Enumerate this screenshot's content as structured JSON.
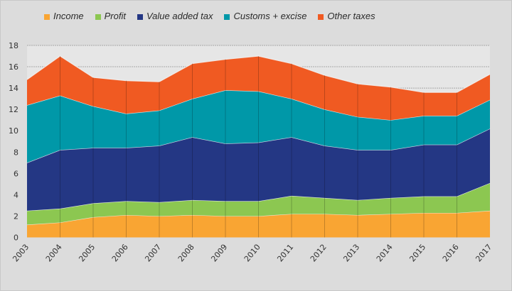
{
  "chart_data": {
    "type": "area",
    "stacked": true,
    "title": "",
    "xlabel": "",
    "ylabel": "",
    "ylim": [
      0,
      18
    ],
    "yticks": [
      0,
      2,
      4,
      6,
      8,
      10,
      12,
      14,
      16,
      18
    ],
    "grid": true,
    "legend_position": "top",
    "categories": [
      "2003",
      "2004",
      "2005",
      "2006",
      "2007",
      "2008",
      "2009",
      "2010",
      "2011",
      "2012",
      "2013",
      "2014",
      "2015",
      "2016",
      "2017"
    ],
    "series": [
      {
        "name": "Income",
        "color": "#f9a533",
        "values": [
          1.2,
          1.4,
          1.9,
          2.1,
          2.0,
          2.1,
          2.0,
          2.0,
          2.2,
          2.2,
          2.1,
          2.2,
          2.3,
          2.3,
          2.5
        ]
      },
      {
        "name": "Profit",
        "color": "#8cc751",
        "values": [
          1.3,
          1.3,
          1.3,
          1.3,
          1.3,
          1.4,
          1.4,
          1.4,
          1.7,
          1.5,
          1.4,
          1.5,
          1.55,
          1.55,
          2.6
        ]
      },
      {
        "name": "Value added tax",
        "color": "#243784",
        "values": [
          4.5,
          5.5,
          5.2,
          5.0,
          5.3,
          5.9,
          5.4,
          5.5,
          5.5,
          4.9,
          4.7,
          4.5,
          4.85,
          4.85,
          5.1
        ]
      },
      {
        "name": "Customs + excise",
        "color": "#0098a8",
        "values": [
          5.4,
          5.1,
          3.9,
          3.2,
          3.3,
          3.6,
          5.0,
          4.8,
          3.6,
          3.4,
          3.1,
          2.8,
          2.7,
          2.7,
          2.7
        ]
      },
      {
        "name": "Other taxes",
        "color": "#f05a22",
        "values": [
          2.4,
          3.7,
          2.7,
          3.1,
          2.7,
          3.3,
          2.9,
          3.3,
          3.3,
          3.2,
          3.1,
          3.1,
          2.2,
          2.2,
          2.4
        ]
      }
    ]
  },
  "colors": {
    "background": "#dcdcdc",
    "plot_background": "#e6e6e6",
    "gridline": "#a8a8a8"
  }
}
